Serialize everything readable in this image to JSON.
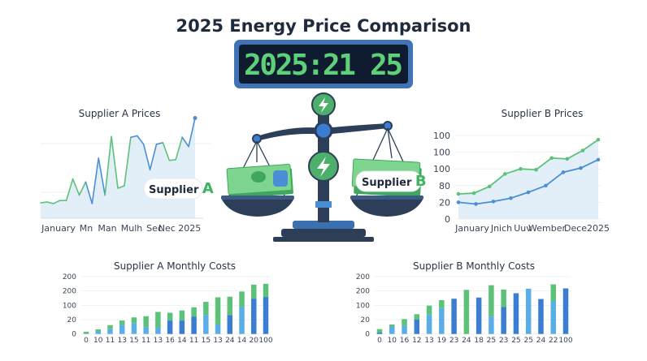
{
  "title": "2025 Energy Price Comparison",
  "display": {
    "text": "2025:21 25"
  },
  "colors": {
    "green": "#5cc27a",
    "blue": "#4a8fd6",
    "dark_blue": "#3b7dd1",
    "light_blue": "#5aaee8",
    "navy": "#2c3e58",
    "area": "#dcebf6"
  },
  "icons": [
    "lightning-bolt-icon",
    "balance-scale-icon",
    "money-stack-icon"
  ],
  "supplier_a_badge": {
    "text": "Supplier ",
    "letter": "A"
  },
  "supplier_b_badge": {
    "text": "Supplier ",
    "letter": "B"
  },
  "chart_data": [
    {
      "type": "line",
      "title": "Supplier A Prices",
      "x_tick_labels": [
        "January",
        "Mn",
        "Man",
        "Mulh",
        "Sec",
        "Nec 2025"
      ],
      "values": [
        20,
        21,
        19,
        23,
        23,
        51,
        30,
        47,
        19,
        78,
        30,
        106,
        39,
        42,
        105,
        107,
        96,
        63,
        96,
        98,
        75,
        76,
        105,
        93,
        130
      ],
      "segment_colors": [
        "green",
        "green",
        "green",
        "green",
        "green",
        "green",
        "green",
        "blue",
        "blue",
        "blue",
        "green",
        "green",
        "green",
        "green",
        "blue",
        "blue",
        "blue",
        "blue",
        "blue",
        "green",
        "green",
        "green",
        "blue",
        "blue"
      ],
      "grid": true
    },
    {
      "type": "line",
      "title": "Supplier B Prices",
      "x_tick_labels": [
        "January",
        "Jnich",
        "Uuv",
        "Wember",
        "Dece",
        "2025"
      ],
      "y_tick_labels": [
        "0",
        "20",
        "80",
        "100",
        "100",
        "100"
      ],
      "ylim": [
        0,
        100
      ],
      "series": [
        {
          "color": "green",
          "values": [
            30,
            31,
            39,
            54,
            60,
            59,
            73,
            72,
            82,
            95
          ]
        },
        {
          "color": "blue",
          "values": [
            20,
            18,
            21,
            25,
            32,
            40,
            56,
            61,
            71
          ]
        }
      ],
      "grid": true
    },
    {
      "type": "bar",
      "stacked": true,
      "title": "Supplier A Monthly Costs",
      "categories": [
        "0",
        "10",
        "11",
        "13",
        "15",
        "11",
        "13",
        "16",
        "14",
        "11",
        "15",
        "13",
        "24",
        "14",
        "20",
        "100"
      ],
      "y_tick_labels": [
        "0",
        "20",
        "100",
        "200",
        "200"
      ],
      "ylim": [
        0,
        200
      ],
      "series": [
        {
          "color": "blue",
          "values": [
            0,
            9,
            17,
            31,
            38,
            24,
            22,
            47,
            47,
            61,
            66,
            33,
            66,
            94,
            123,
            129
          ],
          "shades": [
            "dark",
            "light",
            "light",
            "light",
            "light",
            "light",
            "light",
            "dark",
            "dark",
            "dark",
            "light",
            "light",
            "dark",
            "light",
            "dark",
            "dark"
          ]
        },
        {
          "color": "green",
          "values": [
            8,
            7,
            14,
            16,
            20,
            38,
            55,
            27,
            35,
            32,
            46,
            95,
            64,
            54,
            49,
            46
          ]
        }
      ],
      "grid": true
    },
    {
      "type": "bar",
      "stacked": true,
      "title": "Supplier B Monthly Costs",
      "categories": [
        "0",
        "10",
        "16",
        "12",
        "13",
        "19",
        "23",
        "24",
        "18",
        "25",
        "23",
        "25",
        "25",
        "24",
        "22",
        "100"
      ],
      "y_tick_labels": [
        "0",
        "20",
        "100",
        "200",
        "200"
      ],
      "ylim": [
        0,
        200
      ],
      "series": [
        {
          "color": "blue",
          "values": [
            5,
            26,
            28,
            50,
            68,
            90,
            123,
            0,
            127,
            61,
            94,
            142,
            158,
            122,
            115,
            159
          ],
          "shades": [
            "dark",
            "light",
            "light",
            "dark",
            "light",
            "light",
            "dark",
            "dark",
            "dark",
            "light",
            "dark",
            "dark",
            "light",
            "dark",
            "light",
            "dark"
          ]
        },
        {
          "color": "green",
          "values": [
            12,
            7,
            24,
            19,
            31,
            28,
            0,
            154,
            0,
            109,
            61,
            0,
            0,
            0,
            58,
            0
          ]
        }
      ],
      "grid": true
    }
  ]
}
